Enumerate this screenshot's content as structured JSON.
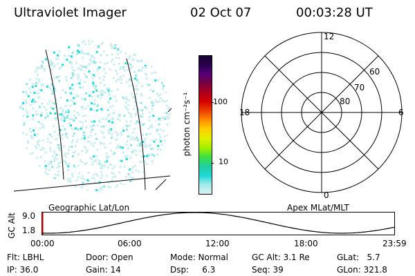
{
  "header": {
    "title": "Ultraviolet Imager",
    "date": "02 Oct 07",
    "time": "00:03:28 UT"
  },
  "colorbar": {
    "label": "photon cm⁻²s⁻¹",
    "ticks": [
      "100",
      "10"
    ],
    "colors": [
      "#1a0033",
      "#2a0050",
      "#55007a",
      "#7a0040",
      "#b0001a",
      "#d40000",
      "#ee4000",
      "#ff9000",
      "#ffd000",
      "#e0f000",
      "#a0ee00",
      "#40e040",
      "#20d0a0",
      "#20d8d8",
      "#a0e8e8",
      "#d8f4f4"
    ]
  },
  "polar_plot": {
    "mlt_labels": [
      "12",
      "18",
      "6",
      "0"
    ],
    "lat_labels": [
      "60",
      "70",
      "80"
    ]
  },
  "timeline": {
    "y_axis_label": "GC Alt",
    "y_ticks": [
      "9.0",
      "1.8"
    ],
    "left_caption": "Geographic Lat/Lon",
    "right_caption": "Apex MLat/MLT",
    "x_ticks": [
      "00:00",
      "06:00",
      "12:00",
      "18:00",
      "23:59"
    ]
  },
  "footer": {
    "flt": "Flt: LBHL",
    "ip": "IP: 36.0",
    "door": "Door: Open",
    "gain": "Gain: 14",
    "mode": "Mode: Normal",
    "dsp": "Dsp:     6.3",
    "gcalt": "GC Alt: 3.1 Re",
    "seq": "Seq: 39",
    "glat": "GLat:   5.7",
    "glon": "GLon: 321.8"
  }
}
